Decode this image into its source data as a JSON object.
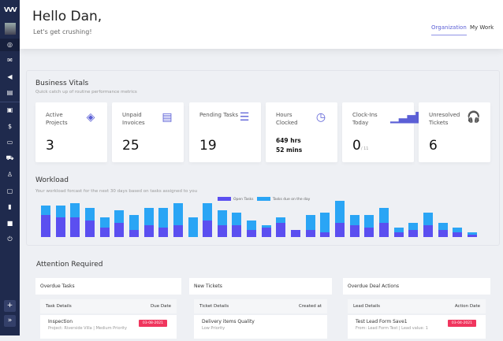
{
  "sidebar": {
    "logo": "VVV",
    "items": [
      "dashboard-icon",
      "mail-icon",
      "megaphone-icon",
      "calendar-icon",
      "board-icon",
      "finance-icon",
      "ticket-icon",
      "cart-icon",
      "user-icon",
      "folder-icon",
      "document-icon",
      "video-icon",
      "power-icon"
    ],
    "add_label": "+",
    "expand_label": "»"
  },
  "header": {
    "greeting": "Hello Dan,",
    "subtitle": "Let's get crushing!",
    "tabs": [
      {
        "label": "Organization",
        "active": true
      },
      {
        "label": "My Work",
        "active": false
      }
    ]
  },
  "vitals": {
    "title": "Business Vitals",
    "subtitle": "Quick catch up of routine performance metrics",
    "cards": [
      {
        "label": "Active Projects",
        "value": "3",
        "icon": "layers-icon"
      },
      {
        "label": "Unpaid Invoices",
        "value": "25",
        "icon": "invoice-icon"
      },
      {
        "label": "Pending Tasks",
        "value": "19",
        "icon": "server-icon"
      },
      {
        "label": "Hours Clocked",
        "value": "649 hrs",
        "value2": "52 mins",
        "icon": "clock-icon"
      },
      {
        "label": "Clock-Ins Today",
        "value": "0",
        "suffix": "/ 11",
        "icon": "signal-icon"
      },
      {
        "label": "Unresolved Tickets",
        "value": "6",
        "icon": "headphones-icon"
      }
    ]
  },
  "workload": {
    "title": "Workload",
    "subtitle": "Your workload forcast for the next 30 days based on tasks assigned to you"
  },
  "chart_data": {
    "type": "bar",
    "stacked": true,
    "legend": "top-center",
    "grid": false,
    "series": [
      {
        "name": "Open Tasks",
        "color": "#5b4ff0",
        "values": [
          9,
          8,
          8,
          7,
          4,
          6,
          3,
          5,
          4,
          5,
          0,
          7,
          5,
          5,
          3,
          4,
          6,
          3,
          3,
          2,
          6,
          5,
          4,
          6,
          2,
          3,
          5,
          3,
          2,
          1
        ]
      },
      {
        "name": "Tasks due on the day",
        "color": "#2aa5f5",
        "values": [
          4,
          5,
          6,
          5,
          4,
          5,
          6,
          7,
          8,
          9,
          8,
          7,
          6,
          5,
          4,
          1,
          2,
          0,
          6,
          8,
          9,
          4,
          5,
          6,
          2,
          3,
          5,
          3,
          2,
          1
        ]
      }
    ]
  },
  "attention": {
    "title": "Attention Required",
    "panels": [
      {
        "title": "Overdue Tasks",
        "col1": "Task Details",
        "col2": "Due Date",
        "item": {
          "name": "Inspection",
          "detail": "Project: Riverside Villa | Medium Priority",
          "date": "03-08-2021"
        }
      },
      {
        "title": "New Tickets",
        "col1": "Ticket Details",
        "col2": "Created at",
        "item": {
          "name": "Delivery items Quality",
          "detail": "Low Priority",
          "date": ""
        }
      },
      {
        "title": "Overdue Deal Actions",
        "col1": "Lead Details",
        "col2": "Action Date",
        "item": {
          "name": "Test Lead Form Save1",
          "detail": "From: Lead Form Test | Lead value: 1",
          "date": "03-04-2021"
        }
      }
    ]
  }
}
